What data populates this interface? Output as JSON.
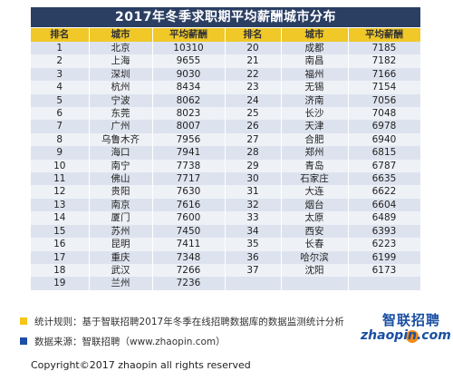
{
  "title": "2017年冬季求职期平均薪酬城市分布",
  "headers": {
    "rank": "排名",
    "city": "城市",
    "salary": "平均薪酬"
  },
  "left_rows": [
    {
      "rank": "1",
      "city": "北京",
      "salary": "10310"
    },
    {
      "rank": "2",
      "city": "上海",
      "salary": "9655"
    },
    {
      "rank": "3",
      "city": "深圳",
      "salary": "9030"
    },
    {
      "rank": "4",
      "city": "杭州",
      "salary": "8434"
    },
    {
      "rank": "5",
      "city": "宁波",
      "salary": "8062"
    },
    {
      "rank": "6",
      "city": "东莞",
      "salary": "8023"
    },
    {
      "rank": "7",
      "city": "广州",
      "salary": "8007"
    },
    {
      "rank": "8",
      "city": "乌鲁木齐",
      "salary": "7956"
    },
    {
      "rank": "9",
      "city": "海口",
      "salary": "7941"
    },
    {
      "rank": "10",
      "city": "南宁",
      "salary": "7738"
    },
    {
      "rank": "11",
      "city": "佛山",
      "salary": "7717"
    },
    {
      "rank": "12",
      "city": "贵阳",
      "salary": "7630"
    },
    {
      "rank": "13",
      "city": "南京",
      "salary": "7616"
    },
    {
      "rank": "14",
      "city": "厦门",
      "salary": "7600"
    },
    {
      "rank": "15",
      "city": "苏州",
      "salary": "7450"
    },
    {
      "rank": "16",
      "city": "昆明",
      "salary": "7411"
    },
    {
      "rank": "17",
      "city": "重庆",
      "salary": "7348"
    },
    {
      "rank": "18",
      "city": "武汉",
      "salary": "7266"
    },
    {
      "rank": "19",
      "city": "兰州",
      "salary": "7236"
    }
  ],
  "right_rows": [
    {
      "rank": "20",
      "city": "成都",
      "salary": "7185"
    },
    {
      "rank": "21",
      "city": "南昌",
      "salary": "7182"
    },
    {
      "rank": "22",
      "city": "福州",
      "salary": "7166"
    },
    {
      "rank": "23",
      "city": "无锡",
      "salary": "7154"
    },
    {
      "rank": "24",
      "city": "济南",
      "salary": "7056"
    },
    {
      "rank": "25",
      "city": "长沙",
      "salary": "7048"
    },
    {
      "rank": "26",
      "city": "天津",
      "salary": "6978"
    },
    {
      "rank": "27",
      "city": "合肥",
      "salary": "6940"
    },
    {
      "rank": "28",
      "city": "郑州",
      "salary": "6815"
    },
    {
      "rank": "29",
      "city": "青岛",
      "salary": "6787"
    },
    {
      "rank": "30",
      "city": "石家庄",
      "salary": "6635"
    },
    {
      "rank": "31",
      "city": "大连",
      "salary": "6622"
    },
    {
      "rank": "32",
      "city": "烟台",
      "salary": "6604"
    },
    {
      "rank": "33",
      "city": "太原",
      "salary": "6489"
    },
    {
      "rank": "34",
      "city": "西安",
      "salary": "6393"
    },
    {
      "rank": "35",
      "city": "长春",
      "salary": "6223"
    },
    {
      "rank": "36",
      "city": "哈尔滨",
      "salary": "6199"
    },
    {
      "rank": "37",
      "city": "沈阳",
      "salary": "6173"
    }
  ],
  "notes": {
    "stats_rule": "统计规则：基于智联招聘2017年冬季在线招聘数据库的数据监测统计分析",
    "data_source": "数据来源：智联招聘（www.zhaopin.com）"
  },
  "logo": {
    "cn": "智联招聘",
    "en": "zhaopin.com"
  },
  "copyright": "Copyright©2017 zhaopin all rights reserved",
  "colors": {
    "title_bg": "#2b3f63",
    "header_bg": "#f0c828",
    "row_odd": "#dde3ee",
    "row_even": "#eef1f6",
    "note_yellow": "#f5c518",
    "note_blue": "#1e4fa8",
    "brand_blue": "#1a4fa3",
    "brand_orange": "#f08c1a"
  }
}
